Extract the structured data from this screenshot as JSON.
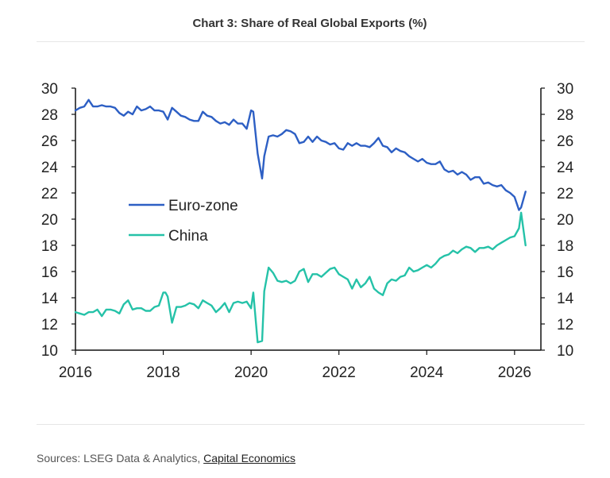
{
  "header": {
    "title": "Chart 3: Share of Real Global Exports (%)"
  },
  "footer": {
    "prefix": "Sources: LSEG Data & Analytics,",
    "link_label": "Capital Economics"
  },
  "colors": {
    "euro_zone": "#2d5fc4",
    "china": "#25c2a8",
    "axis": "#111111",
    "text": "#222222"
  },
  "chart_data": {
    "type": "line",
    "title": "Chart 3: Share of Real Global Exports (%)",
    "xlabel": "",
    "ylabel": "",
    "xlim": [
      2016,
      2026.6
    ],
    "ylim": [
      10,
      30
    ],
    "y2lim": [
      10,
      30
    ],
    "x_ticks": [
      "2016",
      "2018",
      "2020",
      "2022",
      "2024",
      "2026"
    ],
    "y_ticks": [
      "10",
      "12",
      "14",
      "16",
      "18",
      "20",
      "22",
      "24",
      "26",
      "28",
      "30"
    ],
    "grid": false,
    "legend_position": "center-left",
    "series": [
      {
        "name": "Euro-zone",
        "x": [
          2016.0,
          2016.1,
          2016.2,
          2016.3,
          2016.4,
          2016.5,
          2016.6,
          2016.7,
          2016.8,
          2016.9,
          2017.0,
          2017.1,
          2017.2,
          2017.3,
          2017.4,
          2017.5,
          2017.6,
          2017.7,
          2017.8,
          2017.9,
          2018.0,
          2018.1,
          2018.2,
          2018.3,
          2018.4,
          2018.5,
          2018.6,
          2018.7,
          2018.8,
          2018.9,
          2019.0,
          2019.1,
          2019.2,
          2019.3,
          2019.4,
          2019.5,
          2019.6,
          2019.7,
          2019.8,
          2019.9,
          2020.0,
          2020.05,
          2020.15,
          2020.25,
          2020.3,
          2020.4,
          2020.5,
          2020.6,
          2020.7,
          2020.8,
          2020.9,
          2021.0,
          2021.1,
          2021.2,
          2021.3,
          2021.4,
          2021.5,
          2021.6,
          2021.7,
          2021.8,
          2021.9,
          2022.0,
          2022.1,
          2022.2,
          2022.3,
          2022.4,
          2022.5,
          2022.6,
          2022.7,
          2022.8,
          2022.9,
          2023.0,
          2023.1,
          2023.2,
          2023.3,
          2023.4,
          2023.5,
          2023.6,
          2023.7,
          2023.8,
          2023.9,
          2024.0,
          2024.1,
          2024.2,
          2024.3,
          2024.4,
          2024.5,
          2024.6,
          2024.7,
          2024.8,
          2024.9,
          2025.0,
          2025.1,
          2025.2,
          2025.3,
          2025.4,
          2025.5,
          2025.6,
          2025.7,
          2025.8,
          2025.9,
          2026.0,
          2026.1,
          2026.15,
          2026.25
        ],
        "values": [
          28.3,
          28.5,
          28.6,
          29.1,
          28.6,
          28.6,
          28.7,
          28.6,
          28.6,
          28.5,
          28.1,
          27.9,
          28.2,
          28.0,
          28.6,
          28.3,
          28.4,
          28.6,
          28.3,
          28.3,
          28.2,
          27.6,
          28.5,
          28.2,
          27.9,
          27.8,
          27.6,
          27.5,
          27.5,
          28.2,
          27.9,
          27.8,
          27.5,
          27.3,
          27.4,
          27.2,
          27.6,
          27.3,
          27.3,
          26.9,
          28.3,
          28.2,
          25.0,
          23.1,
          24.8,
          26.3,
          26.4,
          26.3,
          26.5,
          26.8,
          26.7,
          26.5,
          25.8,
          25.9,
          26.3,
          25.9,
          26.3,
          26.0,
          25.9,
          25.7,
          25.8,
          25.4,
          25.3,
          25.8,
          25.6,
          25.8,
          25.6,
          25.6,
          25.5,
          25.8,
          26.2,
          25.6,
          25.5,
          25.1,
          25.4,
          25.2,
          25.1,
          24.8,
          24.6,
          24.4,
          24.6,
          24.3,
          24.2,
          24.2,
          24.4,
          23.8,
          23.6,
          23.7,
          23.4,
          23.6,
          23.4,
          23.0,
          23.2,
          23.2,
          22.7,
          22.8,
          22.6,
          22.5,
          22.6,
          22.2,
          22.0,
          21.7,
          20.7,
          20.9,
          22.1
        ]
      },
      {
        "name": "China",
        "x": [
          2016.0,
          2016.1,
          2016.2,
          2016.3,
          2016.4,
          2016.5,
          2016.6,
          2016.7,
          2016.8,
          2016.9,
          2017.0,
          2017.1,
          2017.2,
          2017.3,
          2017.4,
          2017.5,
          2017.6,
          2017.7,
          2017.8,
          2017.9,
          2018.0,
          2018.05,
          2018.1,
          2018.2,
          2018.3,
          2018.4,
          2018.5,
          2018.6,
          2018.7,
          2018.8,
          2018.9,
          2019.0,
          2019.1,
          2019.2,
          2019.3,
          2019.4,
          2019.5,
          2019.6,
          2019.7,
          2019.8,
          2019.9,
          2020.0,
          2020.05,
          2020.15,
          2020.25,
          2020.3,
          2020.4,
          2020.5,
          2020.6,
          2020.7,
          2020.8,
          2020.9,
          2021.0,
          2021.1,
          2021.2,
          2021.3,
          2021.4,
          2021.5,
          2021.6,
          2021.7,
          2021.8,
          2021.9,
          2022.0,
          2022.1,
          2022.2,
          2022.3,
          2022.4,
          2022.5,
          2022.6,
          2022.7,
          2022.8,
          2022.9,
          2023.0,
          2023.1,
          2023.2,
          2023.3,
          2023.4,
          2023.5,
          2023.6,
          2023.7,
          2023.8,
          2023.9,
          2024.0,
          2024.1,
          2024.2,
          2024.3,
          2024.4,
          2024.5,
          2024.6,
          2024.7,
          2024.8,
          2024.9,
          2025.0,
          2025.1,
          2025.2,
          2025.3,
          2025.4,
          2025.5,
          2025.6,
          2025.7,
          2025.8,
          2025.9,
          2026.0,
          2026.1,
          2026.15,
          2026.25
        ],
        "values": [
          12.9,
          12.8,
          12.7,
          12.9,
          12.9,
          13.1,
          12.6,
          13.1,
          13.1,
          13.0,
          12.8,
          13.5,
          13.8,
          13.1,
          13.2,
          13.2,
          13.0,
          13.0,
          13.3,
          13.4,
          14.4,
          14.4,
          14.1,
          12.1,
          13.3,
          13.3,
          13.4,
          13.6,
          13.5,
          13.2,
          13.8,
          13.6,
          13.4,
          12.9,
          13.2,
          13.6,
          12.9,
          13.6,
          13.7,
          13.6,
          13.7,
          13.2,
          14.4,
          10.6,
          10.7,
          14.5,
          16.3,
          15.9,
          15.3,
          15.2,
          15.3,
          15.1,
          15.3,
          16.0,
          16.2,
          15.2,
          15.8,
          15.8,
          15.6,
          15.9,
          16.2,
          16.3,
          15.8,
          15.6,
          15.4,
          14.7,
          15.4,
          14.8,
          15.1,
          15.6,
          14.7,
          14.4,
          14.2,
          15.1,
          15.4,
          15.3,
          15.6,
          15.7,
          16.3,
          16.0,
          16.1,
          16.3,
          16.5,
          16.3,
          16.6,
          17.0,
          17.2,
          17.3,
          17.6,
          17.4,
          17.7,
          17.9,
          17.8,
          17.5,
          17.8,
          17.8,
          17.9,
          17.7,
          18.0,
          18.2,
          18.4,
          18.6,
          18.7,
          19.3,
          20.5,
          18.0
        ]
      }
    ]
  }
}
